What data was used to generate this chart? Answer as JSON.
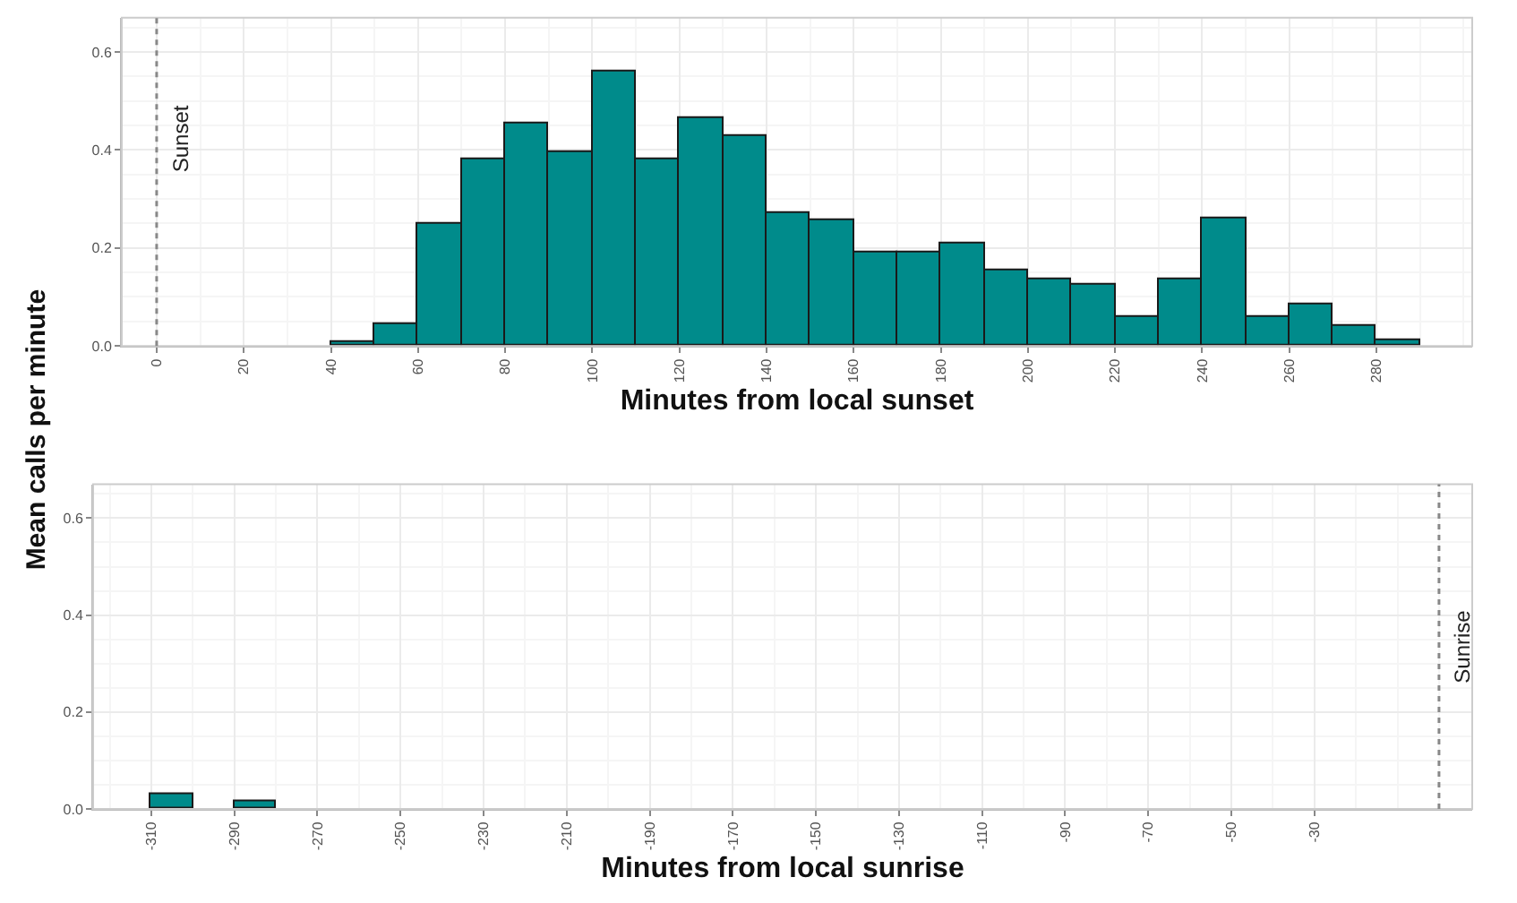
{
  "chart_data": [
    {
      "type": "histogram",
      "xlabel": "Minutes from local sunset",
      "ylabel": "Mean calls per minute",
      "color": "#008b8b",
      "bins": [
        40,
        50,
        60,
        70,
        80,
        90,
        100,
        110,
        120,
        130,
        140,
        150,
        160,
        170,
        180,
        190,
        200,
        210,
        220,
        230,
        240,
        250,
        260,
        270,
        280,
        290
      ],
      "values": [
        0.007,
        0.043,
        0.25,
        0.38,
        0.455,
        0.395,
        0.56,
        0.38,
        0.465,
        0.43,
        0.27,
        0.255,
        0.19,
        0.19,
        0.21,
        0.155,
        0.135,
        0.125,
        0.06,
        0.135,
        0.26,
        0.06,
        0.085,
        0.04,
        0.013
      ],
      "xlim": [
        -8,
        302
      ],
      "xticks": [
        0,
        20,
        40,
        60,
        80,
        100,
        120,
        140,
        160,
        180,
        200,
        220,
        240,
        260,
        280
      ],
      "ylim": [
        0,
        0.67
      ],
      "yticks": [
        {
          "value": 0,
          "label": "0.0"
        },
        {
          "value": 0.2,
          "label": "0.2"
        },
        {
          "value": 0.4,
          "label": "0.4"
        },
        {
          "value": 0.6,
          "label": "0.6"
        }
      ],
      "grid": true,
      "ref_lines": [
        {
          "axis": "x",
          "value": 0,
          "label": "Sunset",
          "line_style": "dotted",
          "color": "#888888"
        }
      ]
    },
    {
      "type": "histogram",
      "xlabel": "Minutes from local sunrise",
      "color": "#008b8b",
      "bins": [
        -310,
        -300,
        -290,
        -280
      ],
      "values": [
        0.03,
        0,
        0.015
      ],
      "xlim": [
        -324,
        8
      ],
      "xticks": [
        -310,
        -290,
        -270,
        -250,
        -230,
        -210,
        -190,
        -170,
        -150,
        -130,
        -110,
        -90,
        -70,
        -50,
        -30
      ],
      "ylim": [
        0,
        0.67
      ],
      "yticks": [
        {
          "value": 0,
          "label": "0.0"
        },
        {
          "value": 0.2,
          "label": "0.2"
        },
        {
          "value": 0.4,
          "label": "0.4"
        },
        {
          "value": 0.6,
          "label": "0.6"
        }
      ],
      "grid": true,
      "ref_lines": [
        {
          "axis": "x",
          "value": 0,
          "label": "Sunrise",
          "line_style": "dotted",
          "color": "#888888"
        }
      ]
    }
  ]
}
